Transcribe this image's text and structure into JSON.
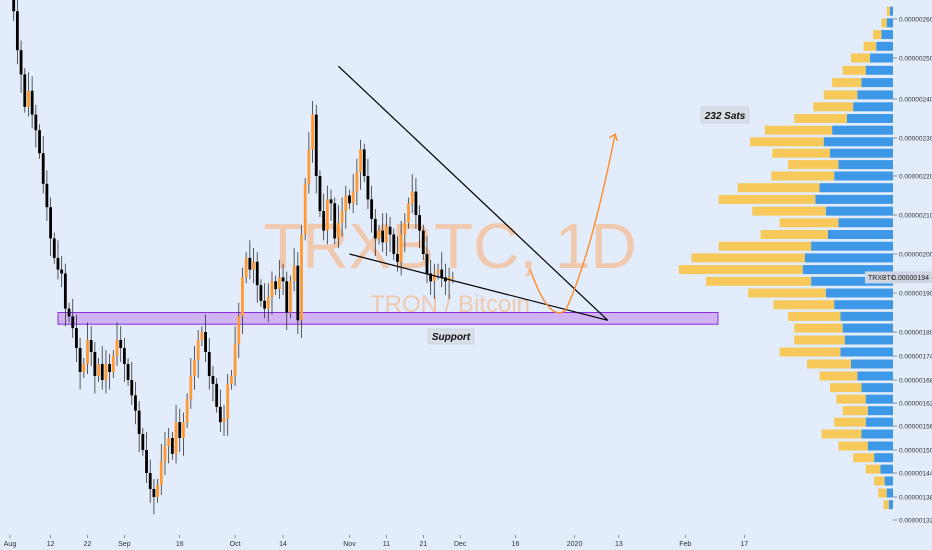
{
  "watermark": {
    "symbol": "TRXBTC, 1D",
    "description": "TRON / Bitcoin"
  },
  "annotations": {
    "support": "Support",
    "target": "232 Sats"
  },
  "price_tag": {
    "symbol": "TRXBTC",
    "value": "0.00000194"
  },
  "colors": {
    "background": "#e3ecfb",
    "up": "#ff9933",
    "down": "#000000",
    "support_zone": "#c9a0f0",
    "support_border": "#8a2be2",
    "volume_up": "#f7c85a",
    "volume_down": "#3d98e8",
    "watermark": "#f6b07a"
  },
  "chart_data": {
    "type": "candlestick",
    "symbol": "TRXBTC",
    "interval": "1D",
    "price_scale": "linear",
    "y_ticks": [
      "0.00000260",
      "0.00000250",
      "0.00000240",
      "0.00000230",
      "0.00000220",
      "0.00000210",
      "0.00000200",
      "0.00000190",
      "0.00000180",
      "0.00000174",
      "0.00000168",
      "0.00000162",
      "0.00000156",
      "0.00000150",
      "0.00000144",
      "0.00000138",
      "0.00000132"
    ],
    "y_tick_values": [
      260,
      250,
      240,
      230,
      220,
      210,
      200,
      190,
      180,
      174,
      168,
      162,
      156,
      150,
      144,
      138,
      132
    ],
    "x_ticks": [
      "Aug",
      "12",
      "22",
      "Sep",
      "16",
      "Oct",
      "14",
      "Nov",
      "11",
      "21",
      "Dec",
      "16",
      "2020",
      "13",
      "Feb",
      "17"
    ],
    "x_tick_days": [
      0,
      11,
      21,
      31,
      46,
      61,
      74,
      92,
      102,
      112,
      122,
      137,
      153,
      165,
      183,
      199
    ],
    "day0_date": "Aug 1 2019",
    "last_price": 194,
    "support_zone": [
      182,
      185
    ],
    "target": 232,
    "wedge": {
      "upper": [
        [
          89,
          248
        ],
        [
          162,
          183
        ]
      ],
      "lower": [
        [
          92,
          200
        ],
        [
          162,
          183
        ]
      ]
    },
    "projection": [
      [
        141,
        196
      ],
      [
        146,
        186
      ],
      [
        155,
        196
      ],
      [
        164,
        231
      ]
    ],
    "candles_daily_close_sats": [
      268,
      262,
      252,
      246,
      238,
      242,
      236,
      232,
      226,
      218,
      212,
      204,
      199,
      196,
      195,
      186,
      184,
      181,
      176,
      170,
      172,
      178,
      175,
      169,
      172,
      168,
      172,
      170,
      174,
      178,
      176,
      172,
      168,
      164,
      160,
      154,
      150,
      144,
      140,
      138,
      141,
      147,
      151,
      153,
      149,
      157,
      153,
      157,
      163,
      169,
      173,
      178,
      180,
      175,
      169,
      167,
      161,
      157,
      158,
      167,
      169,
      177,
      184,
      194,
      199,
      196,
      198,
      192,
      188,
      186,
      189,
      193,
      191,
      194,
      193,
      185,
      193,
      197,
      183,
      205,
      218,
      227,
      236,
      220,
      211,
      206,
      214,
      213,
      204,
      208,
      211,
      215,
      213,
      216,
      221,
      227,
      220,
      214,
      209,
      204,
      206,
      203,
      207,
      205,
      200,
      198,
      205,
      208,
      213,
      216,
      210,
      206,
      200,
      195,
      193,
      195,
      196,
      194,
      193,
      194,
      194
    ]
  },
  "volume_profile": {
    "levels": [
      {
        "p": 262,
        "u": 3,
        "d": 3
      },
      {
        "p": 259,
        "u": 5,
        "d": 6
      },
      {
        "p": 256,
        "u": 8,
        "d": 11
      },
      {
        "p": 253,
        "u": 12,
        "d": 16
      },
      {
        "p": 250,
        "u": 18,
        "d": 22
      },
      {
        "p": 247,
        "u": 22,
        "d": 26
      },
      {
        "p": 244,
        "u": 28,
        "d": 30
      },
      {
        "p": 241,
        "u": 32,
        "d": 34
      },
      {
        "p": 238,
        "u": 38,
        "d": 38
      },
      {
        "p": 235,
        "u": 50,
        "d": 44
      },
      {
        "p": 232,
        "u": 64,
        "d": 58
      },
      {
        "p": 229,
        "u": 70,
        "d": 66
      },
      {
        "p": 226,
        "u": 55,
        "d": 60
      },
      {
        "p": 223,
        "u": 48,
        "d": 52
      },
      {
        "p": 220,
        "u": 60,
        "d": 56
      },
      {
        "p": 217,
        "u": 78,
        "d": 70
      },
      {
        "p": 214,
        "u": 92,
        "d": 74
      },
      {
        "p": 211,
        "u": 70,
        "d": 64
      },
      {
        "p": 208,
        "u": 56,
        "d": 52
      },
      {
        "p": 205,
        "u": 64,
        "d": 62
      },
      {
        "p": 202,
        "u": 88,
        "d": 78
      },
      {
        "p": 199,
        "u": 108,
        "d": 84
      },
      {
        "p": 196,
        "u": 118,
        "d": 86
      },
      {
        "p": 193,
        "u": 100,
        "d": 78
      },
      {
        "p": 190,
        "u": 74,
        "d": 64
      },
      {
        "p": 187,
        "u": 58,
        "d": 56
      },
      {
        "p": 184,
        "u": 50,
        "d": 50
      },
      {
        "p": 181,
        "u": 46,
        "d": 48
      },
      {
        "p": 178,
        "u": 48,
        "d": 46
      },
      {
        "p": 175,
        "u": 58,
        "d": 50
      },
      {
        "p": 172,
        "u": 42,
        "d": 40
      },
      {
        "p": 169,
        "u": 36,
        "d": 34
      },
      {
        "p": 166,
        "u": 30,
        "d": 30
      },
      {
        "p": 163,
        "u": 28,
        "d": 26
      },
      {
        "p": 160,
        "u": 24,
        "d": 24
      },
      {
        "p": 157,
        "u": 30,
        "d": 26
      },
      {
        "p": 154,
        "u": 38,
        "d": 30
      },
      {
        "p": 151,
        "u": 28,
        "d": 24
      },
      {
        "p": 148,
        "u": 20,
        "d": 18
      },
      {
        "p": 145,
        "u": 14,
        "d": 12
      },
      {
        "p": 142,
        "u": 10,
        "d": 8
      },
      {
        "p": 139,
        "u": 8,
        "d": 6
      },
      {
        "p": 136,
        "u": 5,
        "d": 4
      }
    ]
  }
}
